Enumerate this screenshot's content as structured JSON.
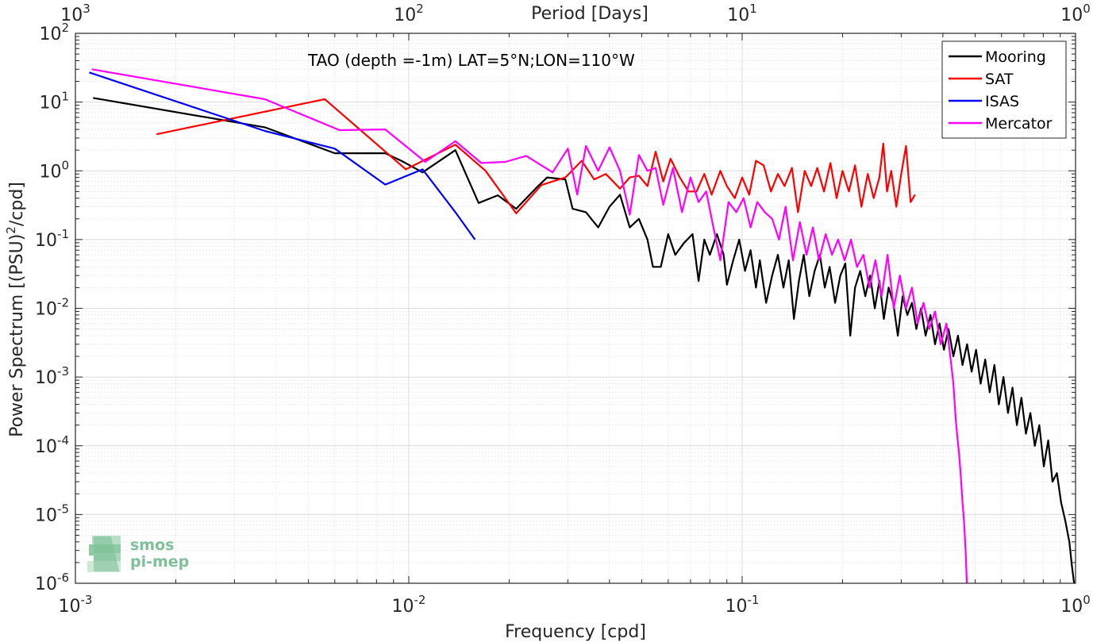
{
  "chart_data": {
    "type": "line",
    "title": "",
    "annotation": "TAO (depth =-1m) LAT=5°N;LON=110°W",
    "xlabel": "Frequency [cpd]",
    "ylabel": "Power Spectrum [(PSU)",
    "ylabel_sup": "2",
    "ylabel_tail": "/cpd]",
    "top_xlabel": "Period [Days]",
    "x_scale": "log",
    "y_scale": "log",
    "xlim": [
      0.001,
      1
    ],
    "ylim": [
      1e-06,
      100
    ],
    "grid": true,
    "legend_position": "top-right",
    "x_ticks": [
      {
        "base": "10",
        "exp": "-3",
        "value": 0.001
      },
      {
        "base": "10",
        "exp": "-2",
        "value": 0.01
      },
      {
        "base": "10",
        "exp": "-1",
        "value": 0.1
      },
      {
        "base": "10",
        "exp": "0",
        "value": 1
      }
    ],
    "top_ticks": [
      {
        "base": "10",
        "exp": "3",
        "freq": 0.001
      },
      {
        "base": "10",
        "exp": "2",
        "freq": 0.01
      },
      {
        "base": "10",
        "exp": "1",
        "freq": 0.1
      },
      {
        "base": "10",
        "exp": "0",
        "freq": 1
      }
    ],
    "y_ticks": [
      {
        "base": "10",
        "exp": "2",
        "value": 100
      },
      {
        "base": "10",
        "exp": "1",
        "value": 10
      },
      {
        "base": "10",
        "exp": "0",
        "value": 1
      },
      {
        "base": "10",
        "exp": "-1",
        "value": 0.1
      },
      {
        "base": "10",
        "exp": "-2",
        "value": 0.01
      },
      {
        "base": "10",
        "exp": "-3",
        "value": 0.001
      },
      {
        "base": "10",
        "exp": "-4",
        "value": 0.0001
      },
      {
        "base": "10",
        "exp": "-5",
        "value": 1e-05
      },
      {
        "base": "10",
        "exp": "-6",
        "value": 1e-06
      }
    ],
    "series": [
      {
        "name": "Mooring",
        "color": "#000000",
        "points": [
          [
            0.00113,
            11.5
          ],
          [
            0.0037,
            4.3
          ],
          [
            0.006,
            1.8
          ],
          [
            0.0085,
            1.8
          ],
          [
            0.0095,
            1.4
          ],
          [
            0.011,
            0.95
          ],
          [
            0.0138,
            2.0
          ],
          [
            0.0162,
            0.34
          ],
          [
            0.0185,
            0.44
          ],
          [
            0.021,
            0.28
          ],
          [
            0.024,
            0.55
          ],
          [
            0.026,
            0.8
          ],
          [
            0.0295,
            0.75
          ],
          [
            0.031,
            0.28
          ],
          [
            0.034,
            0.25
          ],
          [
            0.037,
            0.15
          ],
          [
            0.04,
            0.3
          ],
          [
            0.043,
            0.45
          ],
          [
            0.046,
            0.15
          ],
          [
            0.049,
            0.2
          ],
          [
            0.052,
            0.1
          ],
          [
            0.054,
            0.04
          ],
          [
            0.057,
            0.04
          ],
          [
            0.06,
            0.12
          ],
          [
            0.063,
            0.06
          ],
          [
            0.067,
            0.09
          ],
          [
            0.071,
            0.12
          ],
          [
            0.074,
            0.025
          ],
          [
            0.077,
            0.1
          ],
          [
            0.08,
            0.06
          ],
          [
            0.084,
            0.12
          ],
          [
            0.088,
            0.06
          ],
          [
            0.09,
            0.022
          ],
          [
            0.094,
            0.05
          ],
          [
            0.098,
            0.1
          ],
          [
            0.102,
            0.035
          ],
          [
            0.106,
            0.07
          ],
          [
            0.11,
            0.02
          ],
          [
            0.113,
            0.05
          ],
          [
            0.118,
            0.012
          ],
          [
            0.123,
            0.03
          ],
          [
            0.128,
            0.06
          ],
          [
            0.133,
            0.02
          ],
          [
            0.138,
            0.05
          ],
          [
            0.143,
            0.007
          ],
          [
            0.148,
            0.025
          ],
          [
            0.153,
            0.06
          ],
          [
            0.159,
            0.015
          ],
          [
            0.165,
            0.035
          ],
          [
            0.171,
            0.06
          ],
          [
            0.177,
            0.02
          ],
          [
            0.183,
            0.04
          ],
          [
            0.19,
            0.012
          ],
          [
            0.197,
            0.03
          ],
          [
            0.204,
            0.045
          ],
          [
            0.211,
            0.004
          ],
          [
            0.218,
            0.02
          ],
          [
            0.226,
            0.035
          ],
          [
            0.234,
            0.015
          ],
          [
            0.242,
            0.03
          ],
          [
            0.25,
            0.01
          ],
          [
            0.258,
            0.025
          ],
          [
            0.266,
            0.007
          ],
          [
            0.275,
            0.02
          ],
          [
            0.284,
            0.012
          ],
          [
            0.293,
            0.004
          ],
          [
            0.303,
            0.015
          ],
          [
            0.313,
            0.008
          ],
          [
            0.323,
            0.012
          ],
          [
            0.333,
            0.005
          ],
          [
            0.344,
            0.01
          ],
          [
            0.355,
            0.004
          ],
          [
            0.367,
            0.008
          ],
          [
            0.379,
            0.003
          ],
          [
            0.391,
            0.006
          ],
          [
            0.403,
            0.0025
          ],
          [
            0.416,
            0.005
          ],
          [
            0.43,
            0.002
          ],
          [
            0.444,
            0.004
          ],
          [
            0.458,
            0.0015
          ],
          [
            0.473,
            0.003
          ],
          [
            0.488,
            0.0012
          ],
          [
            0.503,
            0.0025
          ],
          [
            0.519,
            0.0008
          ],
          [
            0.536,
            0.0018
          ],
          [
            0.553,
            0.0006
          ],
          [
            0.571,
            0.0015
          ],
          [
            0.589,
            0.0004
          ],
          [
            0.608,
            0.001
          ],
          [
            0.627,
            0.0003
          ],
          [
            0.647,
            0.0007
          ],
          [
            0.667,
            0.0002
          ],
          [
            0.688,
            0.0005
          ],
          [
            0.71,
            0.00015
          ],
          [
            0.732,
            0.0003
          ],
          [
            0.755,
            0.0001
          ],
          [
            0.779,
            0.0002
          ],
          [
            0.803,
            5e-05
          ],
          [
            0.828,
            0.00012
          ],
          [
            0.853,
            3e-05
          ],
          [
            0.879,
            4e-05
          ],
          [
            0.905,
            1.5e-05
          ],
          [
            0.932,
            8e-06
          ],
          [
            0.958,
            4e-06
          ],
          [
            0.975,
            1.8e-06
          ],
          [
            0.99,
            1e-06
          ]
        ]
      },
      {
        "name": "SAT",
        "color": "#ff0000",
        "points": [
          [
            0.00175,
            3.4
          ],
          [
            0.0056,
            11.0
          ],
          [
            0.0085,
            1.9
          ],
          [
            0.0098,
            1.05
          ],
          [
            0.0138,
            2.4
          ],
          [
            0.017,
            1.0
          ],
          [
            0.021,
            0.24
          ],
          [
            0.025,
            0.62
          ],
          [
            0.0295,
            0.8
          ],
          [
            0.033,
            1.4
          ],
          [
            0.036,
            0.75
          ],
          [
            0.039,
            0.9
          ],
          [
            0.043,
            0.55
          ],
          [
            0.046,
            0.8
          ],
          [
            0.049,
            0.85
          ],
          [
            0.052,
            0.6
          ],
          [
            0.055,
            1.9
          ],
          [
            0.058,
            0.7
          ],
          [
            0.061,
            1.5
          ],
          [
            0.065,
            0.8
          ],
          [
            0.069,
            0.5
          ],
          [
            0.073,
            0.5
          ],
          [
            0.077,
            0.9
          ],
          [
            0.081,
            0.45
          ],
          [
            0.086,
            1.0
          ],
          [
            0.09,
            0.6
          ],
          [
            0.095,
            0.4
          ],
          [
            0.1,
            0.8
          ],
          [
            0.105,
            0.45
          ],
          [
            0.11,
            1.4
          ],
          [
            0.116,
            1.2
          ],
          [
            0.122,
            0.5
          ],
          [
            0.128,
            0.9
          ],
          [
            0.134,
            0.6
          ],
          [
            0.141,
            1.1
          ],
          [
            0.147,
            0.25
          ],
          [
            0.154,
            1.0
          ],
          [
            0.161,
            0.6
          ],
          [
            0.168,
            1.1
          ],
          [
            0.176,
            0.5
          ],
          [
            0.184,
            1.3
          ],
          [
            0.192,
            0.4
          ],
          [
            0.2,
            1.0
          ],
          [
            0.209,
            0.5
          ],
          [
            0.218,
            1.2
          ],
          [
            0.228,
            0.3
          ],
          [
            0.238,
            0.9
          ],
          [
            0.248,
            0.4
          ],
          [
            0.258,
            0.8
          ],
          [
            0.265,
            2.5
          ],
          [
            0.272,
            0.5
          ],
          [
            0.28,
            1.0
          ],
          [
            0.29,
            0.3
          ],
          [
            0.3,
            0.9
          ],
          [
            0.31,
            2.3
          ],
          [
            0.32,
            0.35
          ],
          [
            0.33,
            0.45
          ]
        ]
      },
      {
        "name": "ISAS",
        "color": "#0000ff",
        "points": [
          [
            0.0011,
            27.0
          ],
          [
            0.0037,
            3.8
          ],
          [
            0.006,
            2.1
          ],
          [
            0.0085,
            0.63
          ],
          [
            0.011,
            1.05
          ],
          [
            0.0138,
            0.25
          ],
          [
            0.0158,
            0.1
          ]
        ]
      },
      {
        "name": "Mercator",
        "color": "#ff00ff",
        "points": [
          [
            0.00112,
            30.0
          ],
          [
            0.0037,
            11.0
          ],
          [
            0.0062,
            3.9
          ],
          [
            0.0085,
            4.0
          ],
          [
            0.0112,
            1.35
          ],
          [
            0.0138,
            2.7
          ],
          [
            0.0165,
            1.3
          ],
          [
            0.0195,
            1.35
          ],
          [
            0.0225,
            1.65
          ],
          [
            0.027,
            0.95
          ],
          [
            0.03,
            2.1
          ],
          [
            0.032,
            0.45
          ],
          [
            0.034,
            2.3
          ],
          [
            0.037,
            1.0
          ],
          [
            0.04,
            2.2
          ],
          [
            0.043,
            1.0
          ],
          [
            0.046,
            0.23
          ],
          [
            0.049,
            1.7
          ],
          [
            0.052,
            1.0
          ],
          [
            0.055,
            1.1
          ],
          [
            0.058,
            0.32
          ],
          [
            0.062,
            1.1
          ],
          [
            0.066,
            0.25
          ],
          [
            0.07,
            0.8
          ],
          [
            0.074,
            0.35
          ],
          [
            0.078,
            0.5
          ],
          [
            0.082,
            0.15
          ],
          [
            0.086,
            0.05
          ],
          [
            0.091,
            0.35
          ],
          [
            0.096,
            0.25
          ],
          [
            0.101,
            0.4
          ],
          [
            0.106,
            0.15
          ],
          [
            0.111,
            0.35
          ],
          [
            0.117,
            0.25
          ],
          [
            0.123,
            0.2
          ],
          [
            0.129,
            0.1
          ],
          [
            0.135,
            0.3
          ],
          [
            0.142,
            0.05
          ],
          [
            0.149,
            0.18
          ],
          [
            0.156,
            0.06
          ],
          [
            0.163,
            0.15
          ],
          [
            0.17,
            0.05
          ],
          [
            0.178,
            0.12
          ],
          [
            0.186,
            0.06
          ],
          [
            0.194,
            0.1
          ],
          [
            0.203,
            0.05
          ],
          [
            0.212,
            0.1
          ],
          [
            0.221,
            0.04
          ],
          [
            0.231,
            0.06
          ],
          [
            0.241,
            0.02
          ],
          [
            0.251,
            0.05
          ],
          [
            0.262,
            0.015
          ],
          [
            0.273,
            0.06
          ],
          [
            0.285,
            0.01
          ],
          [
            0.297,
            0.03
          ],
          [
            0.31,
            0.01
          ],
          [
            0.323,
            0.02
          ],
          [
            0.336,
            0.006
          ],
          [
            0.35,
            0.012
          ],
          [
            0.364,
            0.005
          ],
          [
            0.379,
            0.009
          ],
          [
            0.394,
            0.003
          ],
          [
            0.41,
            0.006
          ],
          [
            0.426,
            0.0012
          ],
          [
            0.43,
            0.0008
          ],
          [
            0.437,
            0.00025
          ],
          [
            0.441,
            0.00015
          ],
          [
            0.447,
            8e-05
          ],
          [
            0.452,
            4e-05
          ],
          [
            0.458,
            1.5e-05
          ],
          [
            0.463,
            8e-06
          ],
          [
            0.468,
            3e-06
          ],
          [
            0.472,
            1e-06
          ]
        ]
      }
    ]
  },
  "logo": {
    "line1": "smos",
    "line2": "pi-mep"
  }
}
